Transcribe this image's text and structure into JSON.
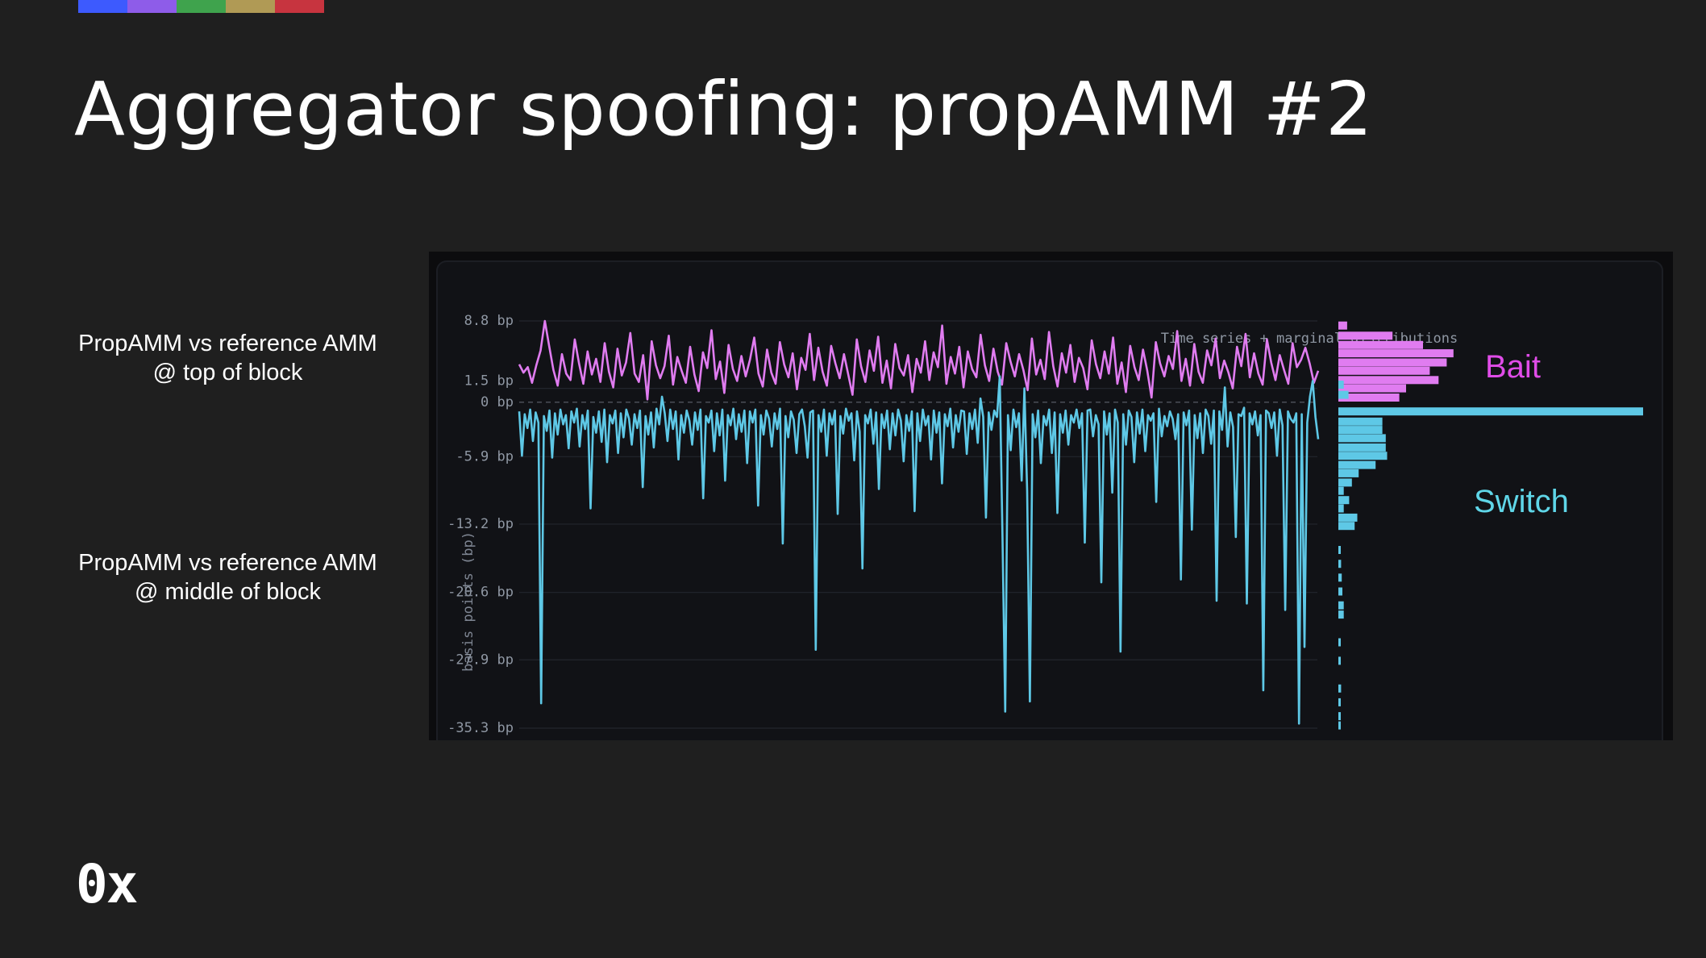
{
  "title": "Aggregator spoofing: propAMM #2",
  "accent_colors": [
    "#3d5afe",
    "#8e5ce9",
    "#3fa34d",
    "#b09a55",
    "#c7343f"
  ],
  "labels": [
    {
      "line1": "PropAMM vs reference AMM",
      "line2": "@ top of block"
    },
    {
      "line1": "PropAMM vs reference AMM",
      "line2": "@ middle of block"
    }
  ],
  "logo": "0x",
  "chart_data": {
    "type": "line",
    "title": "Time series + marginal distributions",
    "ylabel": "basis points (bp)",
    "ylim": [
      -35.3,
      8.8
    ],
    "yticks": [
      {
        "value": 8.8,
        "label": "8.8 bp"
      },
      {
        "value": 1.5,
        "label": "1.5 bp"
      },
      {
        "value": 0,
        "label": "0 bp"
      },
      {
        "value": -5.9,
        "label": "-5.9 bp"
      },
      {
        "value": -13.2,
        "label": "-13.2 bp"
      },
      {
        "value": -20.6,
        "label": "-20.6 bp"
      },
      {
        "value": -27.9,
        "label": "-27.9 bp"
      },
      {
        "value": -35.3,
        "label": "-35.3 bp"
      }
    ],
    "series": [
      {
        "name": "Bait",
        "color": "#e07cf0",
        "values": [
          4.1,
          3.2,
          3.8,
          2.1,
          4.0,
          5.6,
          8.8,
          6.1,
          3.5,
          1.8,
          5.2,
          3.1,
          2.4,
          6.8,
          4.2,
          2.0,
          5.5,
          3.0,
          4.7,
          2.2,
          6.4,
          3.3,
          1.6,
          5.8,
          2.9,
          4.3,
          7.5,
          3.1,
          2.2,
          5.1,
          0.3,
          6.6,
          4.0,
          2.6,
          3.9,
          7.2,
          1.9,
          4.9,
          3.4,
          2.1,
          6.0,
          3.0,
          1.2,
          5.4,
          3.7,
          7.8,
          2.5,
          4.4,
          1.0,
          6.2,
          3.6,
          2.3,
          5.0,
          2.8,
          4.6,
          7.0,
          3.1,
          1.7,
          5.7,
          3.2,
          2.0,
          6.5,
          4.1,
          2.7,
          5.3,
          1.4,
          4.8,
          3.5,
          7.4,
          2.4,
          5.9,
          3.3,
          1.8,
          6.1,
          4.2,
          2.6,
          5.2,
          3.0,
          0.8,
          6.8,
          3.9,
          2.2,
          5.6,
          3.4,
          7.1,
          2.1,
          4.5,
          1.5,
          6.3,
          3.7,
          2.9,
          5.1,
          1.1,
          4.7,
          3.2,
          6.6,
          2.4,
          5.4,
          3.8,
          8.3,
          2.0,
          4.9,
          3.1,
          6.0,
          1.6,
          5.5,
          3.6,
          2.7,
          7.3,
          4.0,
          2.3,
          5.8,
          3.3,
          1.9,
          6.4,
          4.4,
          2.8,
          5.2,
          3.5,
          1.3,
          6.9,
          3.0,
          4.6,
          2.5,
          7.6,
          3.9,
          1.7,
          5.3,
          3.2,
          6.2,
          2.2,
          4.8,
          3.7,
          1.4,
          6.7,
          4.1,
          2.6,
          5.5,
          3.1,
          7.0,
          2.0,
          4.3,
          1.1,
          6.1,
          3.8,
          2.4,
          5.7,
          3.4,
          0.5,
          6.5,
          4.2,
          2.8,
          5.0,
          3.6,
          7.7,
          2.3,
          4.7,
          1.8,
          6.3,
          3.3,
          2.1,
          5.6,
          4.0,
          6.9,
          2.6,
          4.5,
          3.2,
          1.5,
          6.0,
          3.9,
          7.4,
          2.7,
          5.3,
          3.1,
          1.9,
          6.8,
          4.3,
          2.4,
          5.1,
          3.5,
          2.0,
          6.4,
          3.8,
          4.6,
          5.9,
          4.2,
          2.1,
          3.4
        ]
      },
      {
        "name": "Switch",
        "color": "#5ec8e6",
        "values": [
          -1.0,
          -5.8,
          -1.3,
          -2.8,
          -0.8,
          -4.2,
          -1.1,
          -2.2,
          -32.6,
          -1.5,
          -3.1,
          -0.9,
          -6.0,
          -1.2,
          -3.5,
          -0.8,
          -2.4,
          -1.4,
          -5.0,
          -1.0,
          -2.2,
          -0.7,
          -4.8,
          -1.4,
          -2.9,
          -0.9,
          -11.5,
          -1.6,
          -3.3,
          -1.0,
          -4.3,
          -0.8,
          -6.5,
          -1.4,
          -2.3,
          -0.9,
          -5.5,
          -1.2,
          -3.8,
          -0.8,
          -1.8,
          -4.6,
          -1.3,
          -2.8,
          -0.9,
          -9.2,
          -1.5,
          -3.5,
          -1.1,
          -4.9,
          -0.7,
          -2.4,
          0.6,
          -1.2,
          -4.2,
          -0.8,
          -2.9,
          -1.0,
          -6.2,
          -1.4,
          -3.3,
          -0.9,
          -2.0,
          -4.6,
          -1.1,
          -3.0,
          -0.8,
          -10.4,
          -1.5,
          -2.2,
          -0.9,
          -5.3,
          -1.2,
          -3.6,
          -0.8,
          -8.5,
          -1.4,
          -2.5,
          -0.7,
          -4.0,
          -1.3,
          -3.2,
          -0.9,
          -6.6,
          -1.0,
          -2.2,
          -0.8,
          -11.2,
          -1.4,
          -3.5,
          -0.9,
          -1.8,
          -4.8,
          -1.2,
          -2.9,
          -0.7,
          -15.3,
          -1.5,
          -3.8,
          -1.0,
          -1.9,
          -5.5,
          -1.3,
          -0.8,
          -2.6,
          -6.0,
          -1.1,
          -0.9,
          -26.8,
          -1.4,
          -3.2,
          -0.8,
          -5.8,
          -1.2,
          -2.4,
          -0.9,
          -12.1,
          -1.5,
          -3.4,
          -0.7,
          -2.0,
          -1.2,
          -6.3,
          -1.0,
          -3.2,
          -18.0,
          -1.4,
          -2.3,
          -0.8,
          -4.5,
          -1.1,
          -9.4,
          -1.3,
          -2.8,
          -0.9,
          -5.1,
          -1.2,
          -3.6,
          -0.8,
          -2.0,
          -6.4,
          -1.4,
          -3.1,
          -1.0,
          -11.8,
          -1.2,
          -4.2,
          -0.8,
          -2.5,
          -1.5,
          -6.2,
          -0.9,
          -3.3,
          -1.1,
          -8.8,
          -1.3,
          -2.6,
          -0.7,
          -4.9,
          -1.4,
          -3.2,
          -0.9,
          -1.0,
          -5.6,
          -1.2,
          -2.9,
          -0.8,
          -4.4,
          0.4,
          -1.6,
          -12.5,
          -1.1,
          -3.0,
          -0.9,
          -1.6,
          2.8,
          -14.5,
          -33.5,
          -1.4,
          -5.2,
          -0.8,
          -2.7,
          -1.2,
          -8.5,
          1.5,
          -9.6,
          -32.4,
          -1.3,
          -3.8,
          -0.9,
          -6.6,
          -1.5,
          -2.5,
          -0.8,
          -5.5,
          -1.1,
          -12.0,
          -1.3,
          -3.3,
          -0.9,
          -4.6,
          -1.4,
          -2.2,
          -0.8,
          -2.8,
          -1.2,
          -15.2,
          -0.9,
          -0.8,
          -3.7,
          -1.4,
          -2.4,
          -19.5,
          -1.0,
          -3.5,
          -1.2,
          -9.8,
          -0.8,
          -2.2,
          -27.0,
          -1.3,
          -4.6,
          -0.9,
          -1.6,
          -6.5,
          -1.1,
          -3.4,
          -0.8,
          -5.3,
          -1.4,
          -2.0,
          -1.2,
          -10.8,
          -0.7,
          -3.7,
          -1.5,
          -2.6,
          -1.0,
          -1.8,
          -4.0,
          -1.3,
          -19.2,
          -1.1,
          -2.5,
          -0.9,
          -13.8,
          -1.4,
          -3.9,
          -1.2,
          -5.5,
          -0.8,
          -1.5,
          -4.5,
          -0.9,
          -21.5,
          -1.0,
          -3.0,
          1.6,
          -4.8,
          -1.1,
          -2.7,
          -14.6,
          -1.3,
          -1.5,
          -0.6,
          -21.8,
          -1.2,
          -2.4,
          -1.0,
          -3.6,
          -1.4,
          -31.2,
          -0.9,
          -1.2,
          -2.8,
          -1.1,
          -5.8,
          -0.8,
          -2.5,
          -22.5,
          -1.0,
          -1.8,
          -2.2,
          -1.2,
          -34.8,
          -1.3,
          -26.5,
          -2.2,
          0.6,
          2.3,
          -1.6,
          -4.0
        ]
      }
    ],
    "marginal_bins": {
      "bait": [
        {
          "y": 8.3,
          "count": 1.3
        },
        {
          "y": 7.2,
          "count": 8.0
        },
        {
          "y": 6.2,
          "count": 12.5
        },
        {
          "y": 5.3,
          "count": 17.0
        },
        {
          "y": 4.3,
          "count": 16.0
        },
        {
          "y": 3.4,
          "count": 13.5
        },
        {
          "y": 2.4,
          "count": 14.8
        },
        {
          "y": 1.5,
          "count": 10.0
        },
        {
          "y": 0.5,
          "count": 9.0
        }
      ],
      "switch": [
        {
          "y": 1.9,
          "count": 0.8
        },
        {
          "y": 0.8,
          "count": 1.5
        },
        {
          "y": -1.0,
          "count": 45.0
        },
        {
          "y": -2.1,
          "count": 6.5
        },
        {
          "y": -3.0,
          "count": 6.5
        },
        {
          "y": -3.9,
          "count": 7.0
        },
        {
          "y": -4.9,
          "count": 7.0
        },
        {
          "y": -5.8,
          "count": 7.2
        },
        {
          "y": -6.8,
          "count": 5.5
        },
        {
          "y": -7.7,
          "count": 3.0
        },
        {
          "y": -8.7,
          "count": 2.0
        },
        {
          "y": -9.6,
          "count": 0.8
        },
        {
          "y": -10.6,
          "count": 1.6
        },
        {
          "y": -11.5,
          "count": 0.8
        },
        {
          "y": -12.5,
          "count": 2.8
        },
        {
          "y": -13.4,
          "count": 2.4
        },
        {
          "y": -16.0,
          "count": 0.3
        },
        {
          "y": -17.5,
          "count": 0.4
        },
        {
          "y": -19.0,
          "count": 0.5
        },
        {
          "y": -20.5,
          "count": 0.6
        },
        {
          "y": -22.0,
          "count": 0.8
        },
        {
          "y": -23.0,
          "count": 0.8
        },
        {
          "y": -26.0,
          "count": 0.3
        },
        {
          "y": -28.0,
          "count": 0.3
        },
        {
          "y": -31.0,
          "count": 0.4
        },
        {
          "y": -32.5,
          "count": 0.3
        },
        {
          "y": -34.0,
          "count": 0.3
        },
        {
          "y": -35.0,
          "count": 0.3
        }
      ]
    }
  }
}
